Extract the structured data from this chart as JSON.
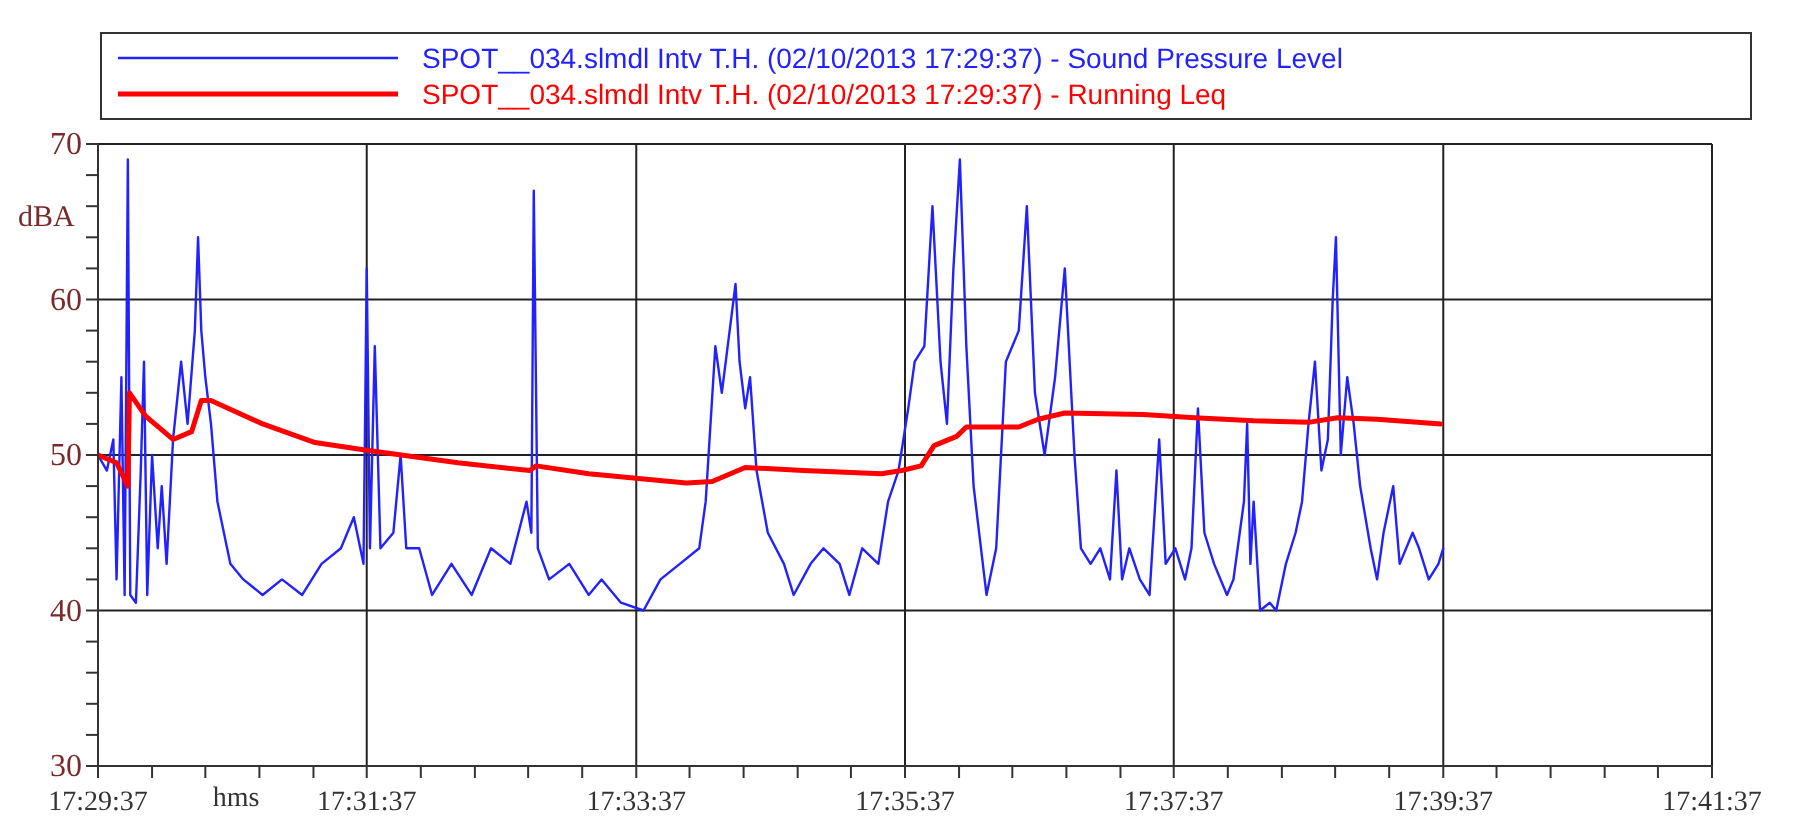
{
  "chart_data": {
    "type": "line",
    "xlabel": "hms",
    "ylabel": "dBA",
    "legend": "top",
    "grid": true,
    "xlim": [
      17.4936,
      17.6936
    ],
    "xticks": [
      {
        "value": 17.4936,
        "label": "17:29:37"
      },
      {
        "value": 17.5003,
        "label": null
      },
      {
        "value": 17.5069,
        "label": null
      },
      {
        "value": 17.5136,
        "label": null
      },
      {
        "value": 17.5203,
        "label": null
      },
      {
        "value": 17.5269,
        "label": "17:31:37"
      },
      {
        "value": 17.5336,
        "label": null
      },
      {
        "value": 17.5403,
        "label": null
      },
      {
        "value": 17.5469,
        "label": null
      },
      {
        "value": 17.5536,
        "label": null
      },
      {
        "value": 17.5603,
        "label": "17:33:37"
      },
      {
        "value": 17.5669,
        "label": null
      },
      {
        "value": 17.5736,
        "label": null
      },
      {
        "value": 17.5803,
        "label": null
      },
      {
        "value": 17.5869,
        "label": null
      },
      {
        "value": 17.5936,
        "label": "17:35:37"
      },
      {
        "value": 17.6003,
        "label": null
      },
      {
        "value": 17.6069,
        "label": null
      },
      {
        "value": 17.6136,
        "label": null
      },
      {
        "value": 17.6203,
        "label": null
      },
      {
        "value": 17.6269,
        "label": "17:37:37"
      },
      {
        "value": 17.6336,
        "label": null
      },
      {
        "value": 17.6403,
        "label": null
      },
      {
        "value": 17.6469,
        "label": null
      },
      {
        "value": 17.6536,
        "label": null
      },
      {
        "value": 17.6603,
        "label": "17:39:37"
      },
      {
        "value": 17.6669,
        "label": null
      },
      {
        "value": 17.6736,
        "label": null
      },
      {
        "value": 17.6803,
        "label": null
      },
      {
        "value": 17.6869,
        "label": null
      },
      {
        "value": 17.6936,
        "label": "17:41:37"
      }
    ],
    "ylim": [
      30,
      70
    ],
    "yticks": [
      30,
      {
        "value": 32,
        "label": null
      },
      {
        "value": 34,
        "label": null
      },
      {
        "value": 36,
        "label": null
      },
      {
        "value": 38,
        "label": null
      },
      40,
      {
        "value": 42,
        "label": null
      },
      {
        "value": 44,
        "label": null
      },
      {
        "value": 46,
        "label": null
      },
      {
        "value": 48,
        "label": null
      },
      50,
      {
        "value": 52,
        "label": null
      },
      {
        "value": 54,
        "label": null
      },
      {
        "value": 56,
        "label": null
      },
      {
        "value": 58,
        "label": null
      },
      60,
      {
        "value": 62,
        "label": null
      },
      {
        "value": 64,
        "label": null
      },
      {
        "value": 66,
        "label": null
      },
      {
        "value": 68,
        "label": null
      },
      70
    ],
    "series": [
      {
        "name": "SPOT__034.slmdl Intv T.H. (02/10/2013 17:29:37) - Sound Pressure Level",
        "color": "#2222ff",
        "x": [
          17.4936,
          17.4947,
          17.4955,
          17.4959,
          17.4965,
          17.4969,
          17.4973,
          17.4976,
          17.4983,
          17.4989,
          17.4993,
          17.4997,
          17.5003,
          17.501,
          17.5015,
          17.5021,
          17.5029,
          17.5039,
          17.5047,
          17.5056,
          17.506,
          17.5064,
          17.5069,
          17.5076,
          17.5084,
          17.51,
          17.5116,
          17.514,
          17.5164,
          17.5189,
          17.5213,
          17.5237,
          17.5253,
          17.5265,
          17.5269,
          17.5273,
          17.5279,
          17.5286,
          17.5302,
          17.5311,
          17.5318,
          17.5334,
          17.535,
          17.5374,
          17.5399,
          17.5423,
          17.5447,
          17.5467,
          17.5473,
          17.5476,
          17.5481,
          17.5495,
          17.552,
          17.5544,
          17.556,
          17.5584,
          17.5612,
          17.5633,
          17.5657,
          17.5681,
          17.5689,
          17.5701,
          17.5709,
          17.5726,
          17.5731,
          17.5738,
          17.5744,
          17.5752,
          17.5766,
          17.5786,
          17.5798,
          17.5819,
          17.5835,
          17.5855,
          17.5867,
          17.5883,
          17.5903,
          17.5915,
          17.5928,
          17.594,
          17.5948,
          17.596,
          17.597,
          17.598,
          17.5988,
          17.5996,
          17.6004,
          17.6012,
          17.6021,
          17.6037,
          17.6049,
          17.6061,
          17.6077,
          17.6087,
          17.6097,
          17.6109,
          17.6122,
          17.6134,
          17.6146,
          17.6154,
          17.6166,
          17.6178,
          17.619,
          17.6198,
          17.6205,
          17.6214,
          17.6227,
          17.6239,
          17.6251,
          17.6259,
          17.6271,
          17.6283,
          17.6291,
          17.6299,
          17.6307,
          17.6319,
          17.6335,
          17.6343,
          17.6356,
          17.636,
          17.6364,
          17.6368,
          17.6376,
          17.6388,
          17.6396,
          17.6408,
          17.642,
          17.6428,
          17.6436,
          17.6444,
          17.6452,
          17.646,
          17.6466,
          17.647,
          17.6476,
          17.6484,
          17.6492,
          17.65,
          17.6513,
          17.6521,
          17.6529,
          17.6541,
          17.6549,
          17.6565,
          17.6573,
          17.6585,
          17.6597,
          17.6603
        ],
        "values": [
          50,
          49,
          51,
          42,
          55,
          41,
          69,
          41,
          40.5,
          49,
          56,
          41,
          50,
          44,
          48,
          43,
          51,
          56,
          52,
          58,
          64,
          58,
          55,
          52,
          47,
          43,
          42,
          41,
          42,
          41,
          43,
          44,
          46,
          43,
          62,
          44,
          57,
          44,
          45,
          50,
          44,
          44,
          41,
          43,
          41,
          44,
          43,
          47,
          45,
          67,
          44,
          42,
          43,
          41,
          42,
          40.5,
          40,
          42,
          43,
          44,
          47,
          57,
          54,
          61,
          56,
          53,
          55,
          49,
          45,
          43,
          41,
          43,
          44,
          43,
          41,
          44,
          43,
          47,
          49,
          53,
          56,
          57,
          66,
          56,
          52,
          62,
          69,
          57,
          48,
          41,
          44,
          56,
          58,
          66,
          54,
          50,
          55,
          62,
          50,
          44,
          43,
          44,
          42,
          49,
          42,
          44,
          42,
          41,
          51,
          43,
          44,
          42,
          44,
          53,
          45,
          43,
          41,
          42,
          47,
          52,
          43,
          47,
          40,
          40.5,
          40,
          43,
          45,
          47,
          52,
          56,
          49,
          51,
          60,
          64,
          50,
          55,
          52,
          48,
          44,
          42,
          45,
          48,
          43,
          45,
          44,
          42,
          43,
          44
        ]
      },
      {
        "name": "SPOT__034.slmdl Intv T.H. (02/10/2013 17:29:37) - Running Leq",
        "color": "#ff0000",
        "x": [
          17.4936,
          17.4959,
          17.4973,
          17.4975,
          17.4995,
          17.5029,
          17.5052,
          17.5064,
          17.5076,
          17.514,
          17.5205,
          17.5269,
          17.5382,
          17.5471,
          17.5479,
          17.5544,
          17.5665,
          17.5697,
          17.5738,
          17.581,
          17.5907,
          17.5932,
          17.5956,
          17.5972,
          17.6,
          17.6012,
          17.6077,
          17.6101,
          17.6134,
          17.6231,
          17.6295,
          17.6368,
          17.6436,
          17.6472,
          17.6521,
          17.66
        ],
        "values": [
          50,
          49.5,
          48,
          54,
          52.5,
          51,
          51.5,
          53.5,
          53.5,
          52,
          50.8,
          50.3,
          49.5,
          49,
          49.3,
          48.8,
          48.2,
          48.3,
          49.2,
          49,
          48.8,
          49,
          49.3,
          50.6,
          51.2,
          51.8,
          51.8,
          52.3,
          52.7,
          52.6,
          52.4,
          52.2,
          52.1,
          52.4,
          52.3,
          52
        ]
      }
    ]
  }
}
